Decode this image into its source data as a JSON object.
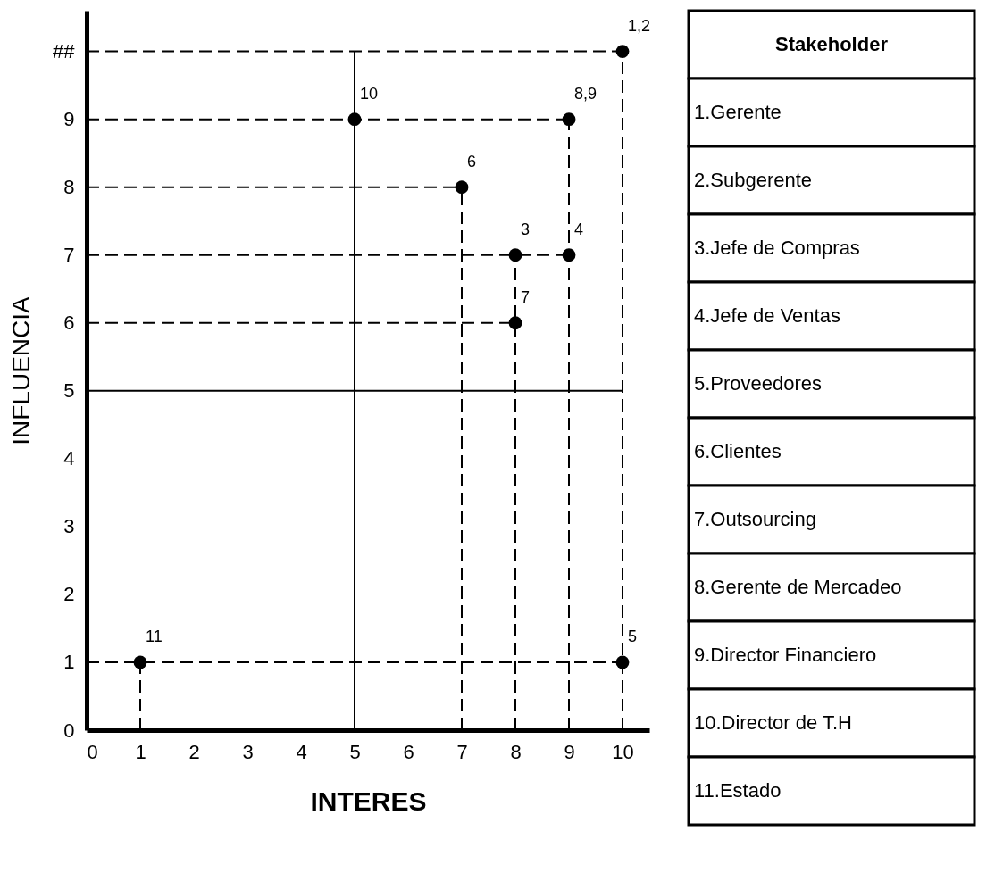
{
  "chart_data": [
    {
      "type": "scatter",
      "xlabel": "INTERES",
      "ylabel": "INFLUENCIA",
      "xlim": [
        0,
        10.5
      ],
      "ylim": [
        0,
        10.6
      ],
      "xticks": [
        0,
        1,
        2,
        3,
        4,
        5,
        6,
        7,
        8,
        9,
        10
      ],
      "yticks": [
        0,
        1,
        2,
        3,
        4,
        5,
        6,
        7,
        8,
        9,
        {
          "value": 10,
          "label": "##"
        }
      ],
      "series": [
        {
          "type": "line",
          "color": "#000000",
          "x": [
            5,
            5
          ],
          "values": [
            0,
            10
          ],
          "line_style": "solid",
          "marker": "none"
        },
        {
          "type": "line",
          "color": "#000000",
          "x": [
            0,
            10
          ],
          "values": [
            5,
            5
          ],
          "line_style": "solid",
          "marker": "none"
        },
        {
          "type": "line",
          "color": "#000000",
          "x": [
            0,
            10
          ],
          "values": [
            10,
            10
          ],
          "line_style": "dashed",
          "marker": "none"
        },
        {
          "type": "line",
          "color": "#000000",
          "x": [
            0,
            9
          ],
          "values": [
            9,
            9
          ],
          "line_style": "dashed",
          "marker": "none"
        },
        {
          "type": "line",
          "color": "#000000",
          "x": [
            0,
            7
          ],
          "values": [
            8,
            8
          ],
          "line_style": "dashed",
          "marker": "none"
        },
        {
          "type": "line",
          "color": "#000000",
          "x": [
            0,
            9
          ],
          "values": [
            7,
            7
          ],
          "line_style": "dashed",
          "marker": "none"
        },
        {
          "type": "line",
          "color": "#000000",
          "x": [
            0,
            8
          ],
          "values": [
            6,
            6
          ],
          "line_style": "dashed",
          "marker": "none"
        },
        {
          "type": "line",
          "color": "#000000",
          "x": [
            0,
            10
          ],
          "values": [
            1,
            1
          ],
          "line_style": "dashed",
          "marker": "none"
        },
        {
          "type": "line",
          "color": "#000000",
          "x": [
            10,
            10
          ],
          "values": [
            0,
            10
          ],
          "line_style": "dashed",
          "marker": "none"
        },
        {
          "type": "line",
          "color": "#000000",
          "x": [
            9,
            9
          ],
          "values": [
            0,
            9
          ],
          "line_style": "dashed",
          "marker": "none"
        },
        {
          "type": "line",
          "color": "#000000",
          "x": [
            8,
            8
          ],
          "values": [
            0,
            7
          ],
          "line_style": "dashed",
          "marker": "none"
        },
        {
          "type": "line",
          "color": "#000000",
          "x": [
            7,
            7
          ],
          "values": [
            0,
            8
          ],
          "line_style": "dashed",
          "marker": "none"
        },
        {
          "type": "line",
          "color": "#000000",
          "x": [
            1,
            1
          ],
          "values": [
            0,
            1
          ],
          "line_style": "dashed",
          "marker": "none"
        },
        {
          "name": "1,2",
          "color": "#000000",
          "x": [
            10
          ],
          "values": [
            10
          ]
        },
        {
          "name": "8,9",
          "color": "#000000",
          "x": [
            9
          ],
          "values": [
            9
          ]
        },
        {
          "name": "10",
          "color": "#000000",
          "x": [
            5
          ],
          "values": [
            9
          ]
        },
        {
          "name": "6",
          "color": "#000000",
          "x": [
            7
          ],
          "values": [
            8
          ]
        },
        {
          "name": "3",
          "color": "#000000",
          "x": [
            8
          ],
          "values": [
            7
          ]
        },
        {
          "name": "4",
          "color": "#000000",
          "x": [
            9
          ],
          "values": [
            7
          ]
        },
        {
          "name": "7",
          "color": "#000000",
          "x": [
            8
          ],
          "values": [
            6
          ]
        },
        {
          "name": "11",
          "color": "#000000",
          "x": [
            1
          ],
          "values": [
            1
          ]
        },
        {
          "name": "5",
          "color": "#000000",
          "x": [
            10
          ],
          "values": [
            1
          ]
        }
      ],
      "marker": "circle"
    },
    {
      "type": "other",
      "title": "Stakeholder",
      "annotations": [
        "1.Gerente",
        "2.Subgerente",
        "3.Jefe de Compras",
        "4.Jefe de Ventas",
        "5.Proveedores",
        "6.Clientes",
        "7.Outsourcing",
        "8.Gerente de Mercadeo",
        "9.Director Financiero",
        "10.Director de T.H",
        "11.Estado"
      ]
    }
  ]
}
